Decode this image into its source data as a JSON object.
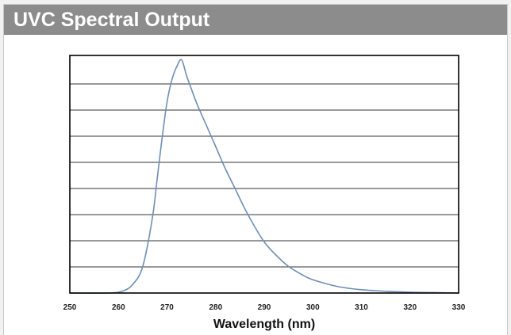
{
  "header": {
    "title": "UVC Spectral Output"
  },
  "colors": {
    "header_bg": "#8c8c8c",
    "curve": "#6f8fb5",
    "grid": "#333333",
    "frame": "#000000"
  },
  "chart_data": {
    "type": "line",
    "title": "UVC Spectral Output",
    "xlabel": "Wavelength (nm)",
    "ylabel": "",
    "xlim": [
      250,
      330
    ],
    "ylim": [
      0,
      1.07
    ],
    "x_ticks": [
      "250",
      "260",
      "270",
      "280",
      "290",
      "300",
      "310",
      "320",
      "330"
    ],
    "grid": "horizontal",
    "y_tick_labels_shown": false,
    "series": [
      {
        "x": [
          250,
          258,
          261,
          263,
          265,
          267,
          268,
          269,
          270,
          271,
          272,
          273,
          274,
          275,
          276,
          278,
          280,
          282,
          284,
          286,
          288,
          290,
          292,
          295,
          298,
          300,
          305,
          310,
          315,
          320,
          325,
          330
        ],
        "y": [
          0.0,
          0.0,
          0.01,
          0.04,
          0.12,
          0.34,
          0.52,
          0.7,
          0.86,
          0.96,
          1.02,
          1.05,
          0.98,
          0.92,
          0.86,
          0.76,
          0.66,
          0.56,
          0.47,
          0.38,
          0.3,
          0.23,
          0.18,
          0.12,
          0.08,
          0.06,
          0.03,
          0.015,
          0.008,
          0.004,
          0.002,
          0.0
        ]
      }
    ]
  }
}
